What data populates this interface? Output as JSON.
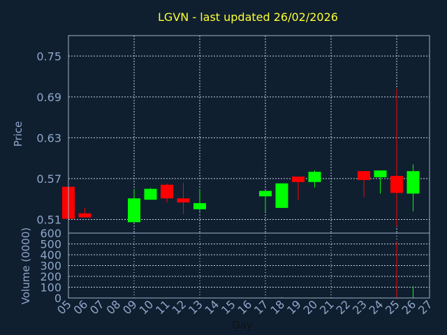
{
  "chart_data": {
    "type": "candlestick",
    "title": "LGVN - last updated 26/02/2026",
    "price_panel": {
      "ylabel": "Price",
      "ylim": [
        0.49,
        0.78
      ],
      "yticks": [
        0.51,
        0.57,
        0.63,
        0.69,
        0.75
      ],
      "ytick_labels": [
        "0.51",
        "0.57",
        "0.63",
        "0.69",
        "0.75"
      ],
      "grid": true
    },
    "volume_panel": {
      "ylabel": "Volume (0000)",
      "ylim": [
        0,
        600
      ],
      "yticks": [
        0,
        100,
        200,
        300,
        400,
        500,
        600
      ],
      "ytick_labels": [
        "0",
        "100",
        "200",
        "300",
        "400",
        "500",
        "600"
      ],
      "grid": true
    },
    "xlabel": "Day",
    "xlim": [
      5,
      27
    ],
    "xtick_labels": [
      "05",
      "06",
      "07",
      "08",
      "09",
      "10",
      "11",
      "12",
      "13",
      "14",
      "15",
      "16",
      "17",
      "18",
      "19",
      "20",
      "21",
      "22",
      "23",
      "24",
      "25",
      "26",
      "27"
    ],
    "up_color": "#00ff00",
    "down_color": "#ff0000",
    "candles": [
      {
        "day": 5,
        "open": 0.558,
        "high": 0.558,
        "low": 0.511,
        "close": 0.511,
        "volume": 3
      },
      {
        "day": 6,
        "open": 0.519,
        "high": 0.527,
        "low": 0.513,
        "close": 0.513,
        "volume": 2
      },
      {
        "day": 9,
        "open": 0.506,
        "high": 0.554,
        "low": 0.506,
        "close": 0.541,
        "volume": 5
      },
      {
        "day": 10,
        "open": 0.539,
        "high": 0.556,
        "low": 0.539,
        "close": 0.555,
        "volume": 3
      },
      {
        "day": 11,
        "open": 0.561,
        "high": 0.563,
        "low": 0.535,
        "close": 0.541,
        "volume": 4
      },
      {
        "day": 12,
        "open": 0.541,
        "high": 0.564,
        "low": 0.518,
        "close": 0.535,
        "volume": 3
      },
      {
        "day": 13,
        "open": 0.525,
        "high": 0.554,
        "low": 0.521,
        "close": 0.534,
        "volume": 5
      },
      {
        "day": 17,
        "open": 0.544,
        "high": 0.552,
        "low": 0.521,
        "close": 0.552,
        "volume": 4
      },
      {
        "day": 18,
        "open": 0.527,
        "high": 0.563,
        "low": 0.527,
        "close": 0.563,
        "volume": 7
      },
      {
        "day": 19,
        "open": 0.573,
        "high": 0.573,
        "low": 0.539,
        "close": 0.565,
        "volume": 4
      },
      {
        "day": 20,
        "open": 0.565,
        "high": 0.582,
        "low": 0.557,
        "close": 0.58,
        "volume": 5
      },
      {
        "day": 23,
        "open": 0.581,
        "high": 0.581,
        "low": 0.543,
        "close": 0.568,
        "volume": 3
      },
      {
        "day": 24,
        "open": 0.572,
        "high": 0.582,
        "low": 0.548,
        "close": 0.582,
        "volume": 5
      },
      {
        "day": 25,
        "open": 0.574,
        "high": 0.702,
        "low": 0.5,
        "close": 0.549,
        "volume": 520
      },
      {
        "day": 26,
        "open": 0.548,
        "high": 0.591,
        "low": 0.522,
        "close": 0.581,
        "volume": 110
      }
    ]
  }
}
